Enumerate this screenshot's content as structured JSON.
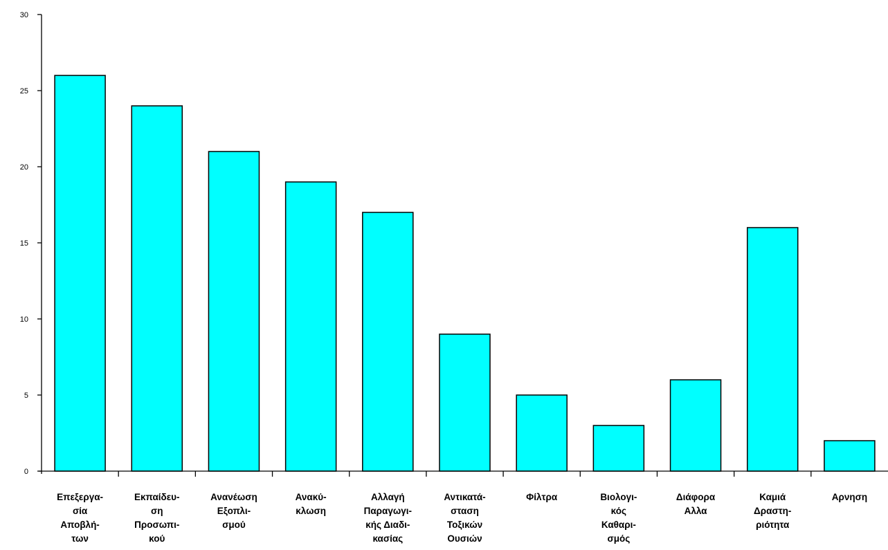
{
  "chart_data": {
    "type": "bar",
    "title": "",
    "xlabel": "",
    "ylabel": "",
    "ylim": [
      0,
      30
    ],
    "yticks": [
      0,
      5,
      10,
      15,
      20,
      25,
      30
    ],
    "grid": false,
    "legend": "none",
    "bar_color": "#00FFFF",
    "bar_edge_color": "#000000",
    "categories": [
      "Επεξεργα-σία Αποβλή-των",
      "Εκπαίδευ-ση Προσωπι-κού",
      "Ανανέωση Εξοπλι-σμού",
      "Ανακύ-κλωση",
      "Αλλαγή Παραγωγι-κής Διαδι-κασίας",
      "Αντικατά-σταση Τοξικών Ουσιών",
      "Φίλτρα",
      "Βιολογι-κός Καθαρι-σμός",
      "Διάφορα Αλλα",
      "Καμιά Δραστη-ριότητα",
      "Αρνηση"
    ],
    "category_lines": [
      [
        "Επεξεργα-",
        "σία",
        "Αποβλή-",
        "των"
      ],
      [
        "Εκπαίδευ-",
        "ση",
        "Προσωπι-",
        "κού"
      ],
      [
        "Ανανέωση",
        "Εξοπλι-",
        "σμού"
      ],
      [
        "Ανακύ-",
        "κλωση"
      ],
      [
        "Αλλαγή",
        "Παραγωγι-",
        "κής Διαδι-",
        "κασίας"
      ],
      [
        "Αντικατά-",
        "σταση",
        "Τοξικών",
        "Ουσιών"
      ],
      [
        "Φίλτρα"
      ],
      [
        "Βιολογι-",
        "κός",
        "Καθαρι-",
        "σμός"
      ],
      [
        "Διάφορα",
        "Αλλα"
      ],
      [
        "Καμιά",
        "Δραστη-",
        "ριότητα"
      ],
      [
        "Αρνηση"
      ]
    ],
    "values": [
      26,
      24,
      21,
      19,
      17,
      9,
      5,
      3,
      6,
      16,
      2
    ]
  }
}
